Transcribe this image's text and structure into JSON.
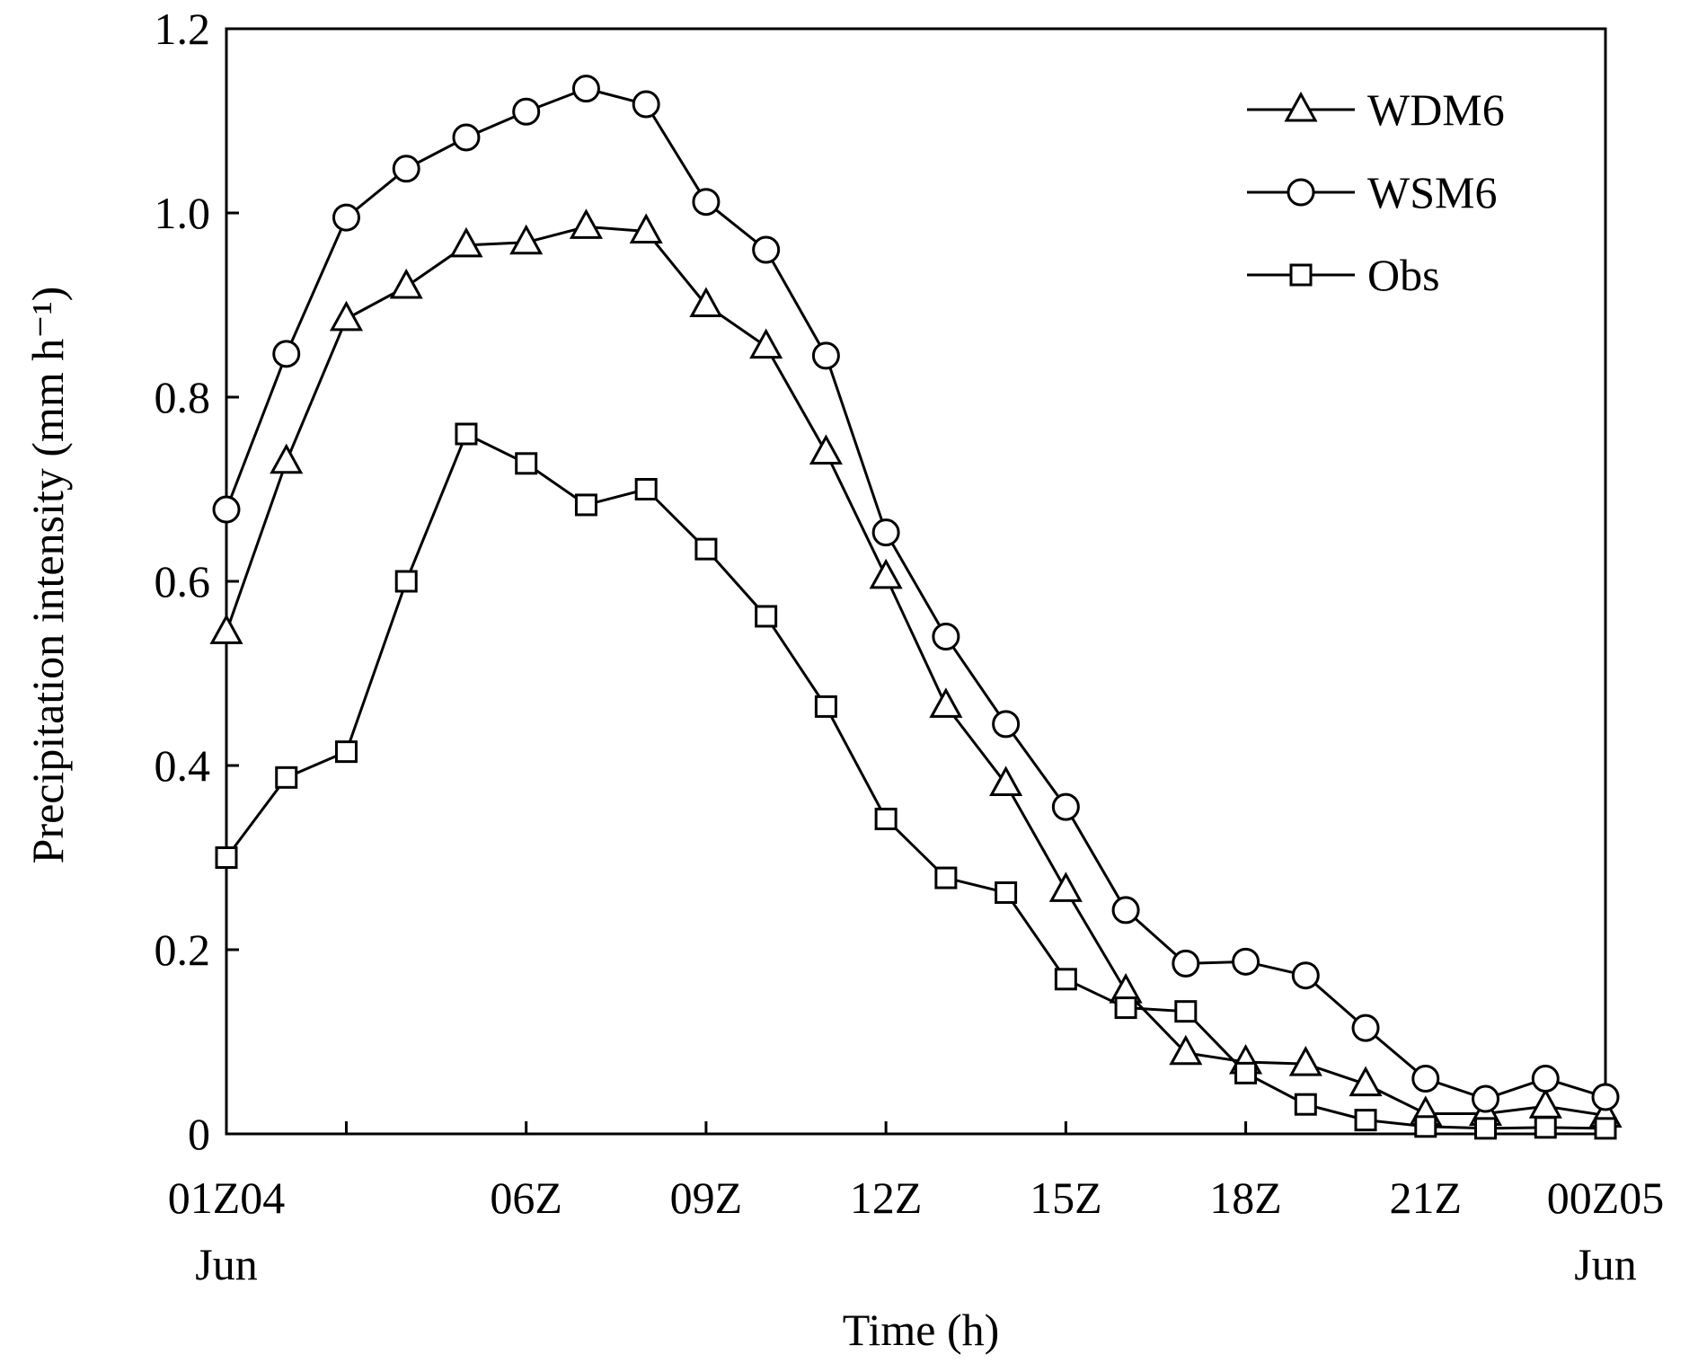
{
  "chart_data": {
    "type": "line",
    "title": "",
    "xlabel": "Time (h)",
    "ylabel": "Precipitation intensity (mm h⁻¹)",
    "xlim": [
      0,
      23
    ],
    "ylim": [
      0,
      1.2
    ],
    "grid": false,
    "legend_position": "top-right",
    "x": [
      0,
      1,
      2,
      3,
      4,
      5,
      6,
      7,
      8,
      9,
      10,
      11,
      12,
      13,
      14,
      15,
      16,
      17,
      18,
      19,
      20,
      21,
      22,
      23
    ],
    "x_ticks": [
      {
        "value": 0,
        "line1": "01Z04",
        "line2": "Jun"
      },
      {
        "value": 5,
        "line1": "06Z",
        "line2": ""
      },
      {
        "value": 8,
        "line1": "09Z",
        "line2": ""
      },
      {
        "value": 11,
        "line1": "12Z",
        "line2": ""
      },
      {
        "value": 14,
        "line1": "15Z",
        "line2": ""
      },
      {
        "value": 17,
        "line1": "18Z",
        "line2": ""
      },
      {
        "value": 20,
        "line1": "21Z",
        "line2": ""
      },
      {
        "value": 23,
        "line1": "00Z05",
        "line2": "Jun"
      }
    ],
    "x_minor_ticks": [
      2
    ],
    "y_ticks": [
      {
        "value": 0,
        "label": "0"
      },
      {
        "value": 0.2,
        "label": "0.2"
      },
      {
        "value": 0.4,
        "label": "0.4"
      },
      {
        "value": 0.6,
        "label": "0.6"
      },
      {
        "value": 0.8,
        "label": "0.8"
      },
      {
        "value": 1.0,
        "label": "1.0"
      },
      {
        "value": 1.2,
        "label": "1.2"
      }
    ],
    "series": [
      {
        "name": "WDM6",
        "marker": "triangle",
        "values": [
          0.545,
          0.73,
          0.885,
          0.92,
          0.965,
          0.968,
          0.985,
          0.98,
          0.9,
          0.855,
          0.74,
          0.605,
          0.465,
          0.38,
          0.265,
          0.155,
          0.088,
          0.078,
          0.076,
          0.054,
          0.022,
          0.022,
          0.03,
          0.02
        ]
      },
      {
        "name": "WSM6",
        "marker": "circle",
        "values": [
          0.678,
          0.847,
          0.995,
          1.048,
          1.082,
          1.11,
          1.135,
          1.118,
          1.012,
          0.96,
          0.845,
          0.653,
          0.54,
          0.445,
          0.355,
          0.243,
          0.185,
          0.187,
          0.172,
          0.115,
          0.06,
          0.038,
          0.06,
          0.04
        ]
      },
      {
        "name": "Obs",
        "marker": "square",
        "values": [
          0.3,
          0.387,
          0.415,
          0.6,
          0.76,
          0.728,
          0.683,
          0.7,
          0.635,
          0.562,
          0.464,
          0.342,
          0.278,
          0.262,
          0.168,
          0.137,
          0.133,
          0.066,
          0.032,
          0.015,
          0.008,
          0.006,
          0.007,
          0.006
        ]
      }
    ]
  }
}
